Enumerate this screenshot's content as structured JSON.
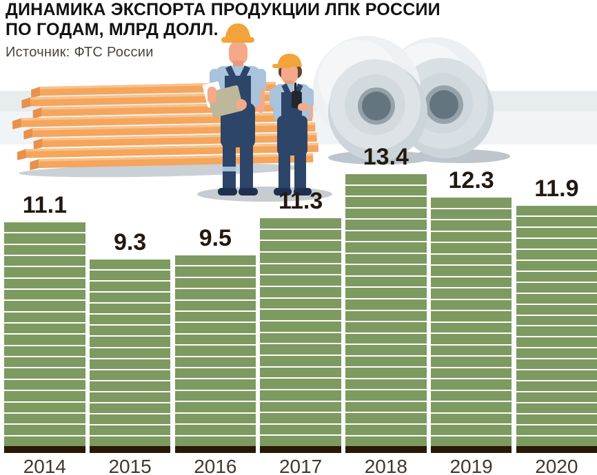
{
  "header": {
    "title_line1": "ДИНАМИКА ЭКСПОРТА ПРОДУКЦИИ ЛПК РОССИИ",
    "title_line2": "ПО ГОДАМ, МЛРД ДОЛЛ.",
    "source": "Источник: ФТС России"
  },
  "illustration": {
    "elements": [
      "stacked-lumber",
      "two-workers-in-hard-hats",
      "paper-rolls"
    ]
  },
  "colors": {
    "bar_green": "#7d9a61",
    "bar_base_dark": "#281807",
    "value_label": "#221910",
    "year_label": "#403830",
    "band_a": "#e7ecef",
    "band_b": "#f1f4f6",
    "lumber_orange": "#f5a55c",
    "worker_overalls": "#2d4568",
    "worker_shirt": "#a9c3dc",
    "hard_hat": "#f2a339"
  },
  "chart_data": {
    "type": "bar",
    "title": "ДИНАМИКА ЭКСПОРТА ПРОДУКЦИИ ЛПК РОССИИ ПО ГОДАМ, МЛРД ДОЛЛ.",
    "source": "Источник: ФТС России",
    "categories": [
      "2014",
      "2015",
      "2016",
      "2017",
      "2018",
      "2019",
      "2020"
    ],
    "values": [
      11.1,
      9.3,
      9.5,
      11.3,
      13.4,
      12.3,
      11.9
    ],
    "value_labels": [
      "11.1",
      "9.3",
      "9.5",
      "11.3",
      "13.4",
      "12.3",
      "11.9"
    ],
    "xlabel": "",
    "ylabel": "",
    "ylim": [
      0,
      14
    ],
    "grid": false,
    "legend": "none",
    "bar_style": "horizontal-plank-stripes"
  }
}
